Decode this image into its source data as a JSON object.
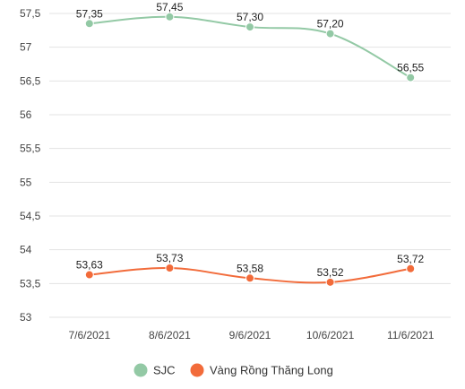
{
  "chart_data": {
    "type": "line",
    "title": "",
    "xlabel": "",
    "ylabel": "",
    "categories": [
      "7/6/2021",
      "8/6/2021",
      "9/6/2021",
      "10/6/2021",
      "11/6/2021"
    ],
    "ylim": [
      53,
      57.5
    ],
    "yticks": [
      "53",
      "53,5",
      "54",
      "54,5",
      "55",
      "55,5",
      "56",
      "56,5",
      "57",
      "57,5"
    ],
    "grid": true,
    "legend_position": "bottom",
    "series": [
      {
        "name": "SJC",
        "color": "#93c9a5",
        "values": [
          57.35,
          57.45,
          57.3,
          57.2,
          56.55
        ],
        "labels": [
          "57,35",
          "57,45",
          "57,30",
          "57,20",
          "56,55"
        ]
      },
      {
        "name": "Vàng Rồng Thăng Long",
        "color": "#f26b3a",
        "values": [
          53.63,
          53.73,
          53.58,
          53.52,
          53.72
        ],
        "labels": [
          "53,63",
          "53,73",
          "53,58",
          "53,52",
          "53,72"
        ]
      }
    ]
  }
}
